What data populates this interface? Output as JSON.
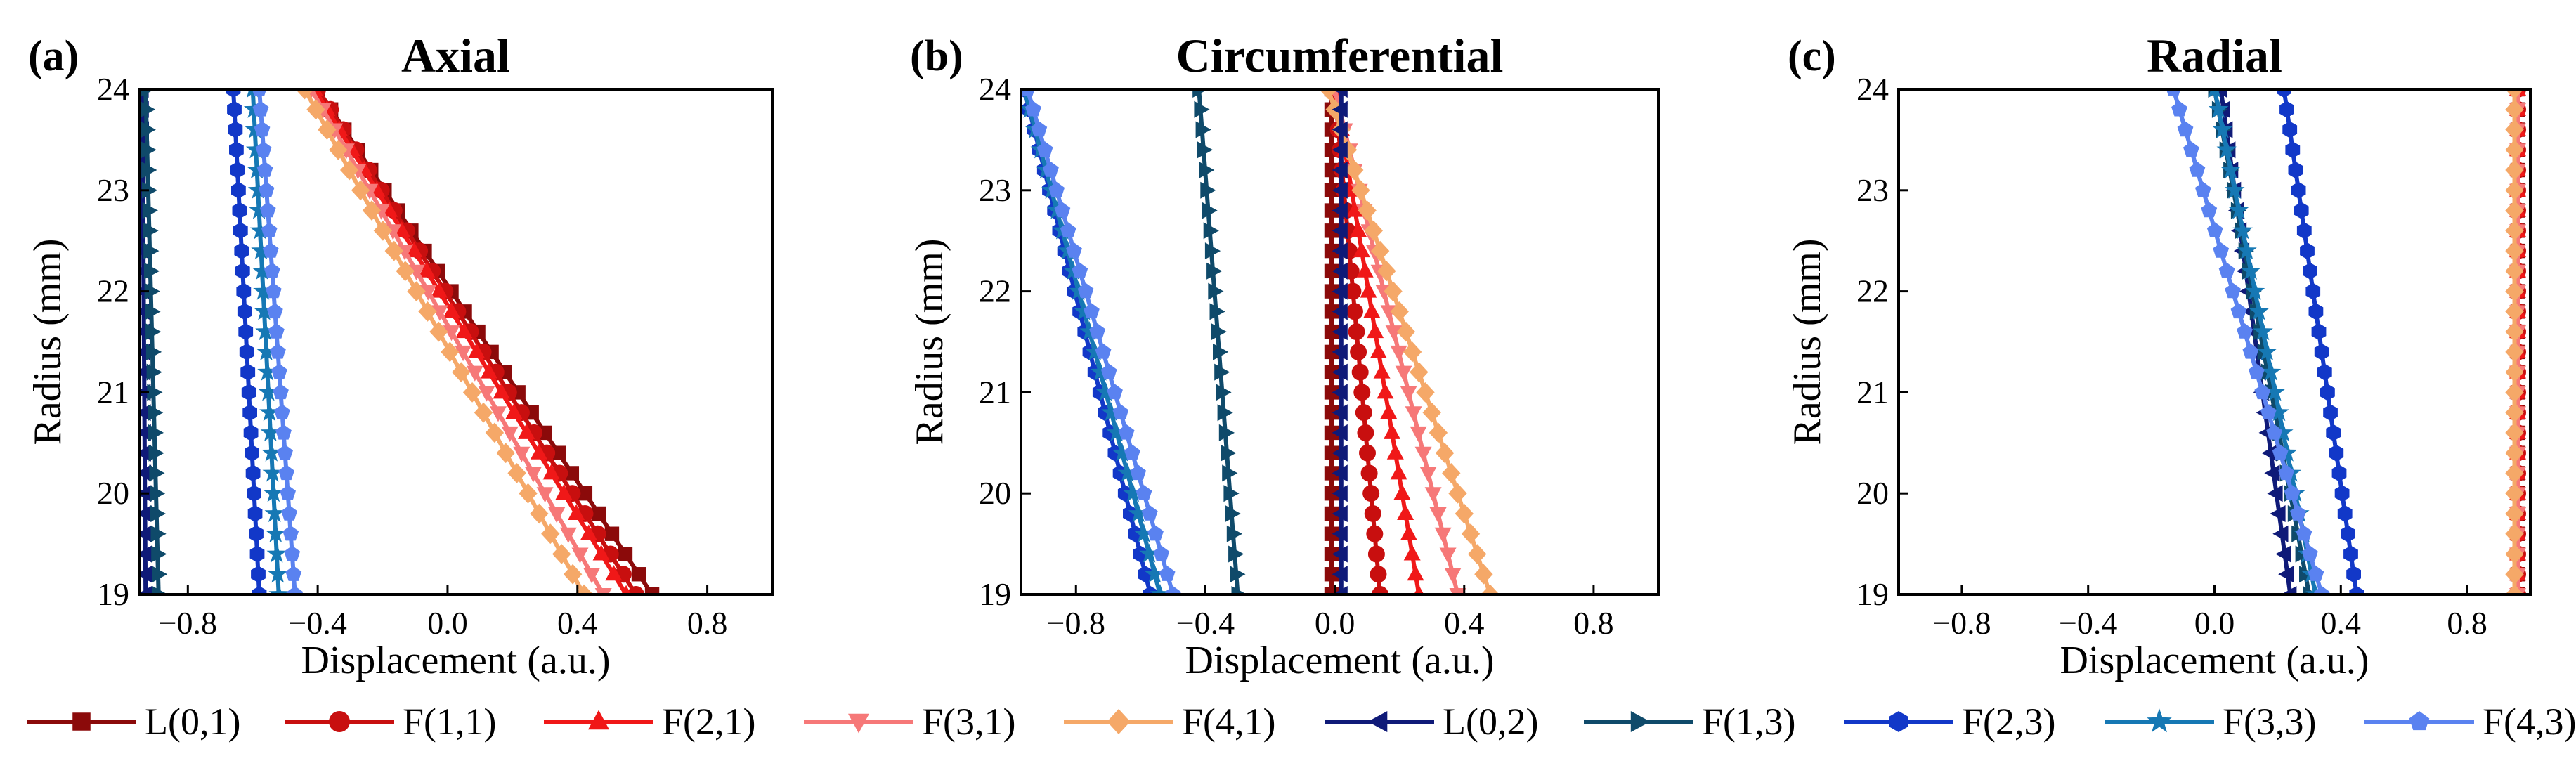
{
  "figure": {
    "panels": [
      {
        "letter": "(a)",
        "title": "Axial"
      },
      {
        "letter": "(b)",
        "title": "Circumferential"
      },
      {
        "letter": "(c)",
        "title": "Radial"
      }
    ],
    "xlabel": "Displacement (a.u.)",
    "ylabel": "Radius (mm)"
  },
  "chart_data": [
    {
      "type": "line",
      "title": "Axial",
      "xlabel": "Displacement (a.u.)",
      "ylabel": "Radius (mm)",
      "xlim": [
        -0.95,
        1.0
      ],
      "ylim": [
        19,
        24
      ],
      "xticks": [
        "−0.8",
        "−0.4",
        "0.0",
        "0.4",
        "0.8"
      ],
      "yticks": [
        "19",
        "20",
        "21",
        "22",
        "23",
        "24"
      ],
      "series": [
        {
          "name": "L(0,1)",
          "x": [
            0.63,
            -0.4
          ],
          "y": [
            19,
            24
          ]
        },
        {
          "name": "F(1,1)",
          "x": [
            0.58,
            -0.4
          ],
          "y": [
            19,
            24
          ]
        },
        {
          "name": "F(2,1)",
          "x": [
            0.55,
            -0.41
          ],
          "y": [
            19,
            24
          ]
        },
        {
          "name": "F(3,1)",
          "x": [
            0.48,
            -0.42
          ],
          "y": [
            19,
            24
          ]
        },
        {
          "name": "F(4,1)",
          "x": [
            0.42,
            -0.44
          ],
          "y": [
            19,
            24
          ]
        },
        {
          "name": "L(0,2)",
          "x": [
            -0.93,
            -0.94
          ],
          "y": [
            19,
            24
          ]
        },
        {
          "name": "F(1,3)",
          "x": [
            -0.89,
            -0.93
          ],
          "y": [
            19,
            24
          ]
        },
        {
          "name": "F(2,3)",
          "x": [
            -0.58,
            -0.66
          ],
          "y": [
            19,
            24
          ]
        },
        {
          "name": "F(3,3)",
          "x": [
            -0.52,
            -0.6
          ],
          "y": [
            19,
            24
          ]
        },
        {
          "name": "F(4,3)",
          "x": [
            -0.47,
            -0.58
          ],
          "y": [
            19,
            24
          ]
        }
      ]
    },
    {
      "type": "line",
      "title": "Circumferential",
      "xlabel": "Displacement (a.u.)",
      "ylabel": "Radius (mm)",
      "xlim": [
        -0.97,
        1.0
      ],
      "ylim": [
        19,
        24
      ],
      "xticks": [
        "−0.8",
        "−0.4",
        "0.0",
        "0.4",
        "0.8"
      ],
      "yticks": [
        "19",
        "20",
        "21",
        "22",
        "23",
        "24"
      ],
      "series": [
        {
          "name": "L(0,1)",
          "x": [
            -0.01,
            -0.01
          ],
          "y": [
            19,
            24
          ]
        },
        {
          "name": "F(1,1)",
          "x": [
            0.14,
            0.0
          ],
          "y": [
            19,
            24
          ]
        },
        {
          "name": "F(2,1)",
          "x": [
            0.26,
            0.0
          ],
          "y": [
            19,
            24
          ]
        },
        {
          "name": "F(3,1)",
          "x": [
            0.38,
            0.0
          ],
          "y": [
            19,
            24
          ]
        },
        {
          "name": "F(4,1)",
          "x": [
            0.48,
            -0.02
          ],
          "y": [
            19,
            24
          ]
        },
        {
          "name": "L(0,2)",
          "x": [
            0.02,
            0.02
          ],
          "y": [
            19,
            24
          ]
        },
        {
          "name": "F(1,3)",
          "x": [
            -0.3,
            -0.42
          ],
          "y": [
            19,
            24
          ]
        },
        {
          "name": "F(2,3)",
          "x": [
            -0.57,
            -0.96
          ],
          "y": [
            19,
            24
          ]
        },
        {
          "name": "F(3,3)",
          "x": [
            -0.54,
            -0.96
          ],
          "y": [
            19,
            24
          ]
        },
        {
          "name": "F(4,3)",
          "x": [
            -0.5,
            -0.95
          ],
          "y": [
            19,
            24
          ]
        }
      ]
    },
    {
      "type": "line",
      "title": "Radial",
      "xlabel": "Displacement (a.u.)",
      "ylabel": "Radius (mm)",
      "xlim": [
        -1.0,
        1.0
      ],
      "ylim": [
        19,
        24
      ],
      "xticks": [
        "−0.8",
        "−0.4",
        "0.0",
        "0.4",
        "0.8"
      ],
      "yticks": [
        "19",
        "20",
        "21",
        "22",
        "23",
        "24"
      ],
      "series": [
        {
          "name": "L(0,1)",
          "x": [
            0.96,
            0.96
          ],
          "y": [
            19,
            24
          ]
        },
        {
          "name": "F(1,1)",
          "x": [
            0.96,
            0.96
          ],
          "y": [
            19,
            24
          ]
        },
        {
          "name": "F(2,1)",
          "x": [
            0.96,
            0.96
          ],
          "y": [
            19,
            24
          ]
        },
        {
          "name": "F(3,1)",
          "x": [
            0.96,
            0.96
          ],
          "y": [
            19,
            24
          ]
        },
        {
          "name": "F(4,1)",
          "x": [
            0.95,
            0.95
          ],
          "y": [
            19,
            24
          ]
        },
        {
          "name": "L(0,2)",
          "x": [
            0.24,
            0.02
          ],
          "y": [
            19,
            24
          ]
        },
        {
          "name": "F(1,3)",
          "x": [
            0.3,
            0.0
          ],
          "y": [
            19,
            24
          ]
        },
        {
          "name": "F(2,3)",
          "x": [
            0.45,
            0.22
          ],
          "y": [
            19,
            24
          ]
        },
        {
          "name": "F(3,3)",
          "x": [
            0.32,
            0.0
          ],
          "y": [
            19,
            24
          ]
        },
        {
          "name": "F(4,3)",
          "x": [
            0.34,
            -0.13
          ],
          "y": [
            19,
            24
          ]
        }
      ]
    }
  ],
  "legend": {
    "items": [
      {
        "label": "L(0,1)",
        "color": "#8b0a0a",
        "marker": "square"
      },
      {
        "label": "F(1,1)",
        "color": "#c80f0f",
        "marker": "circle"
      },
      {
        "label": "F(2,1)",
        "color": "#f01818",
        "marker": "triangle-up"
      },
      {
        "label": "F(3,1)",
        "color": "#f67878",
        "marker": "triangle-down"
      },
      {
        "label": "F(4,1)",
        "color": "#f5a868",
        "marker": "diamond"
      },
      {
        "label": "L(0,2)",
        "color": "#0f1a78",
        "marker": "triangle-left"
      },
      {
        "label": "F(1,3)",
        "color": "#0f4a6a",
        "marker": "triangle-right"
      },
      {
        "label": "F(2,3)",
        "color": "#1238c8",
        "marker": "hexagon"
      },
      {
        "label": "F(3,3)",
        "color": "#1678b4",
        "marker": "star"
      },
      {
        "label": "F(4,3)",
        "color": "#5a82f0",
        "marker": "pentagon"
      }
    ]
  }
}
